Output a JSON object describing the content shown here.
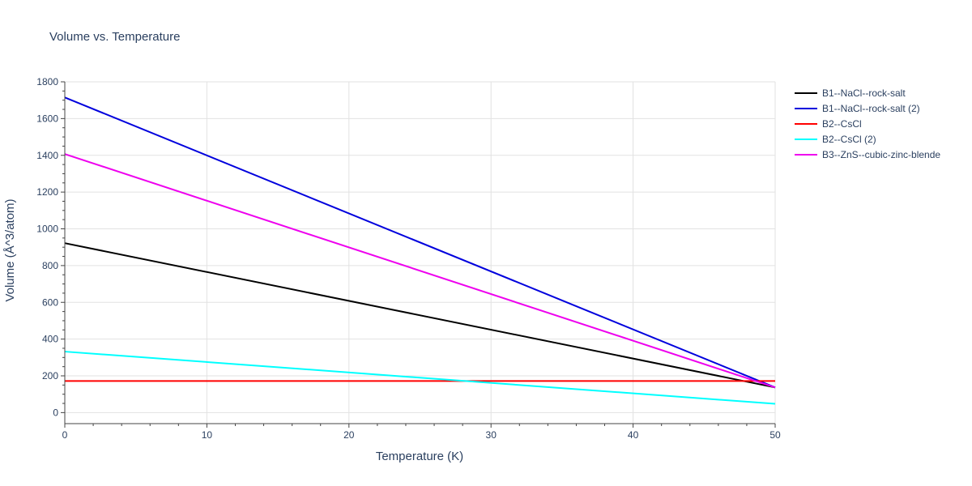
{
  "chart_data": {
    "type": "line",
    "title": "Volume vs. Temperature",
    "xlabel": "Temperature (K)",
    "ylabel": "Volume (Å^3/atom)",
    "xlim": [
      0,
      50
    ],
    "ylim": [
      -60,
      1800
    ],
    "xticks": [
      0,
      10,
      20,
      30,
      40,
      50
    ],
    "yticks": [
      0,
      200,
      400,
      600,
      800,
      1000,
      1200,
      1400,
      1600,
      1800
    ],
    "grid": true,
    "legend_position": "top-right outside",
    "series": [
      {
        "name": "B1--NaCl--rock-salt",
        "color": "#000000",
        "x": [
          0,
          50
        ],
        "y": [
          922,
          137
        ]
      },
      {
        "name": "B1--NaCl--rock-salt (2)",
        "color": "#0000dd",
        "x": [
          0,
          50
        ],
        "y": [
          1715,
          137
        ]
      },
      {
        "name": "B2--CsCl",
        "color": "#ff0000",
        "x": [
          0,
          50
        ],
        "y": [
          172,
          172
        ]
      },
      {
        "name": "B2--CsCl (2)",
        "color": "#00ffff",
        "x": [
          0,
          50
        ],
        "y": [
          332,
          48
        ]
      },
      {
        "name": "B3--ZnS--cubic-zinc-blende",
        "color": "#ee00ee",
        "x": [
          0,
          50
        ],
        "y": [
          1407,
          137
        ]
      }
    ]
  }
}
